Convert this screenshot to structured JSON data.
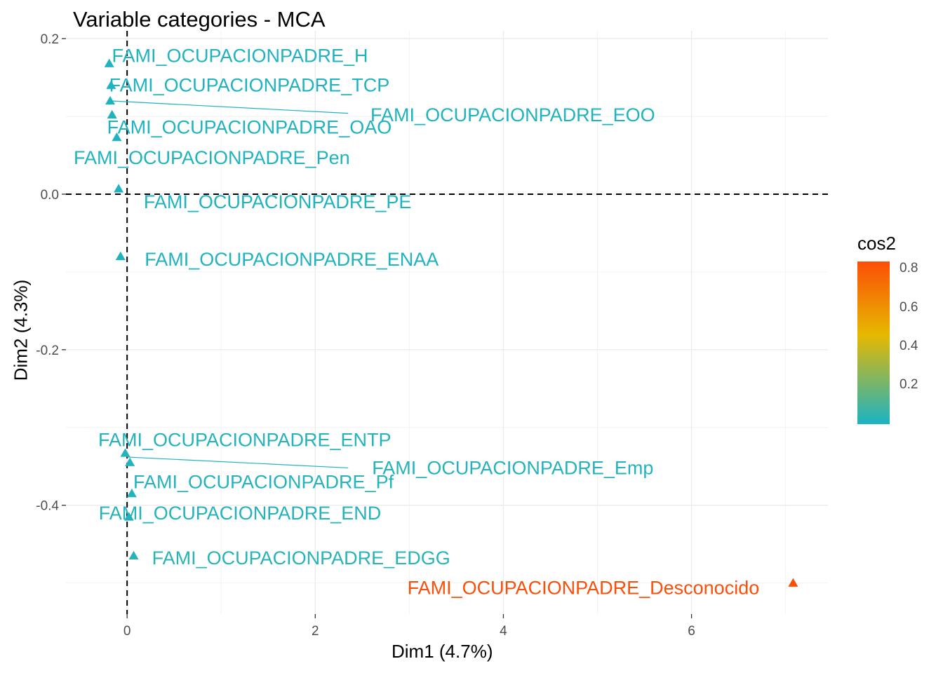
{
  "chart_data": {
    "type": "scatter",
    "title": "Variable categories - MCA",
    "xlabel": "Dim1 (4.7%)",
    "ylabel": "Dim2 (4.3%)",
    "xlim": [
      -0.65,
      7.45
    ],
    "ylim": [
      -0.54,
      0.21
    ],
    "x_ticks": [
      0,
      2,
      4,
      6
    ],
    "y_ticks": [
      0.2,
      0.0,
      -0.2,
      -0.4
    ],
    "x_tick_labels": [
      "0",
      "2",
      "4",
      "6"
    ],
    "y_tick_labels": [
      "0.2",
      "0.0",
      "-0.2",
      "-0.4"
    ],
    "reference_lines": {
      "x": 0,
      "y": 0,
      "style": "dashed"
    },
    "grid": true,
    "legend": {
      "title": "cos2",
      "placement": "right",
      "ticks": [
        0.2,
        0.4,
        0.6,
        0.8
      ],
      "tick_labels": [
        "0.2",
        "0.4",
        "0.6",
        "0.8"
      ],
      "range": [
        0.0,
        0.84
      ],
      "colors": {
        "low": "#1BB3C4",
        "mid": "#E6B800",
        "high": "#FC4E07"
      }
    },
    "points": [
      {
        "label": "FAMI_OCUPACIONPADRE_H",
        "x": -0.19,
        "y": 0.168,
        "cos2": 0.01,
        "label_x": 1.2,
        "label_y": 0.178
      },
      {
        "label": "FAMI_OCUPACIONPADRE_TCP",
        "x": -0.17,
        "y": 0.14,
        "cos2": 0.01,
        "label_x": 1.3,
        "label_y": 0.14
      },
      {
        "label": "FAMI_OCUPACIONPADRE_EOO",
        "x": -0.18,
        "y": 0.12,
        "cos2": 0.01,
        "label_x": 4.1,
        "label_y": 0.102
      },
      {
        "label": "FAMI_OCUPACIONPADRE_OAO",
        "x": -0.16,
        "y": 0.102,
        "cos2": 0.01,
        "label_x": 1.3,
        "label_y": 0.086
      },
      {
        "label": "FAMI_OCUPACIONPADRE_Pen",
        "x": -0.11,
        "y": 0.073,
        "cos2": 0.01,
        "label_x": 0.9,
        "label_y": 0.047
      },
      {
        "label": "FAMI_OCUPACIONPADRE_PE",
        "x": -0.09,
        "y": 0.007,
        "cos2": 0.01,
        "label_x": 1.6,
        "label_y": -0.01
      },
      {
        "label": "FAMI_OCUPACIONPADRE_ENAA",
        "x": -0.07,
        "y": -0.08,
        "cos2": 0.01,
        "label_x": 1.75,
        "label_y": -0.084
      },
      {
        "label": "FAMI_OCUPACIONPADRE_ENTP",
        "x": -0.02,
        "y": -0.333,
        "cos2": 0.02,
        "label_x": 1.25,
        "label_y": -0.316
      },
      {
        "label": "FAMI_OCUPACIONPADRE_Emp",
        "x": 0.03,
        "y": -0.345,
        "cos2": 0.02,
        "label_x": 4.1,
        "label_y": -0.352
      },
      {
        "label": "FAMI_OCUPACIONPADRE_Pf",
        "x": 0.05,
        "y": -0.385,
        "cos2": 0.02,
        "label_x": 1.45,
        "label_y": -0.37
      },
      {
        "label": "FAMI_OCUPACIONPADRE_END",
        "x": 0.02,
        "y": -0.415,
        "cos2": 0.02,
        "label_x": 1.2,
        "label_y": -0.41
      },
      {
        "label": "FAMI_OCUPACIONPADRE_EDGG",
        "x": 0.07,
        "y": -0.465,
        "cos2": 0.03,
        "label_x": 1.85,
        "label_y": -0.468
      },
      {
        "label": "FAMI_OCUPACIONPADRE_Desconocido",
        "x": 7.08,
        "y": -0.5,
        "cos2": 0.84,
        "label_x": 4.85,
        "label_y": -0.506
      }
    ],
    "connectors": [
      {
        "from": "FAMI_OCUPACIONPADRE_EOO",
        "x1": -0.18,
        "y1": 0.12,
        "x2": 2.35,
        "y2": 0.104
      },
      {
        "from": "FAMI_OCUPACIONPADRE_Emp",
        "x1": 0.0,
        "y1": -0.338,
        "x2": 2.35,
        "y2": -0.352
      }
    ]
  }
}
